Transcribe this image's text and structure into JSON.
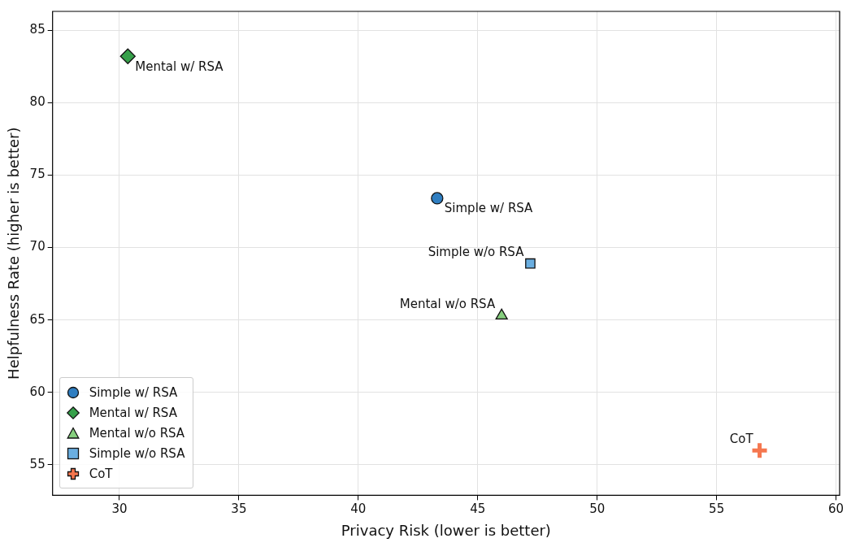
{
  "chart_data": {
    "type": "scatter",
    "xlabel": "Privacy Risk (lower is better)",
    "ylabel": "Helpfulness Rate (higher is better)",
    "xlim": [
      27.2,
      60.15
    ],
    "ylim": [
      52.9,
      86.3
    ],
    "xticks": [
      30,
      35,
      40,
      45,
      50,
      55,
      60
    ],
    "yticks": [
      55,
      60,
      65,
      70,
      75,
      80,
      85
    ],
    "grid": true,
    "legend": "bottom left",
    "series": [
      {
        "name": "Simple w/ RSA",
        "color": "#2f7ec1",
        "marker": "circle",
        "x": [
          43.3
        ],
        "values": [
          73.4
        ]
      },
      {
        "name": "Mental w/ RSA",
        "color": "#36a04a",
        "marker": "diamond",
        "x": [
          30.35
        ],
        "values": [
          83.2
        ]
      },
      {
        "name": "Mental w/o RSA",
        "color": "#86cf7e",
        "marker": "triangle",
        "x": [
          46.0
        ],
        "values": [
          65.3
        ]
      },
      {
        "name": "Simple w/o RSA",
        "color": "#6aaee0",
        "marker": "square",
        "x": [
          47.2
        ],
        "values": [
          68.9
        ]
      },
      {
        "name": "CoT",
        "color": "#f5774f",
        "marker": "cross",
        "x": [
          56.8
        ],
        "values": [
          56.0
        ]
      }
    ]
  }
}
